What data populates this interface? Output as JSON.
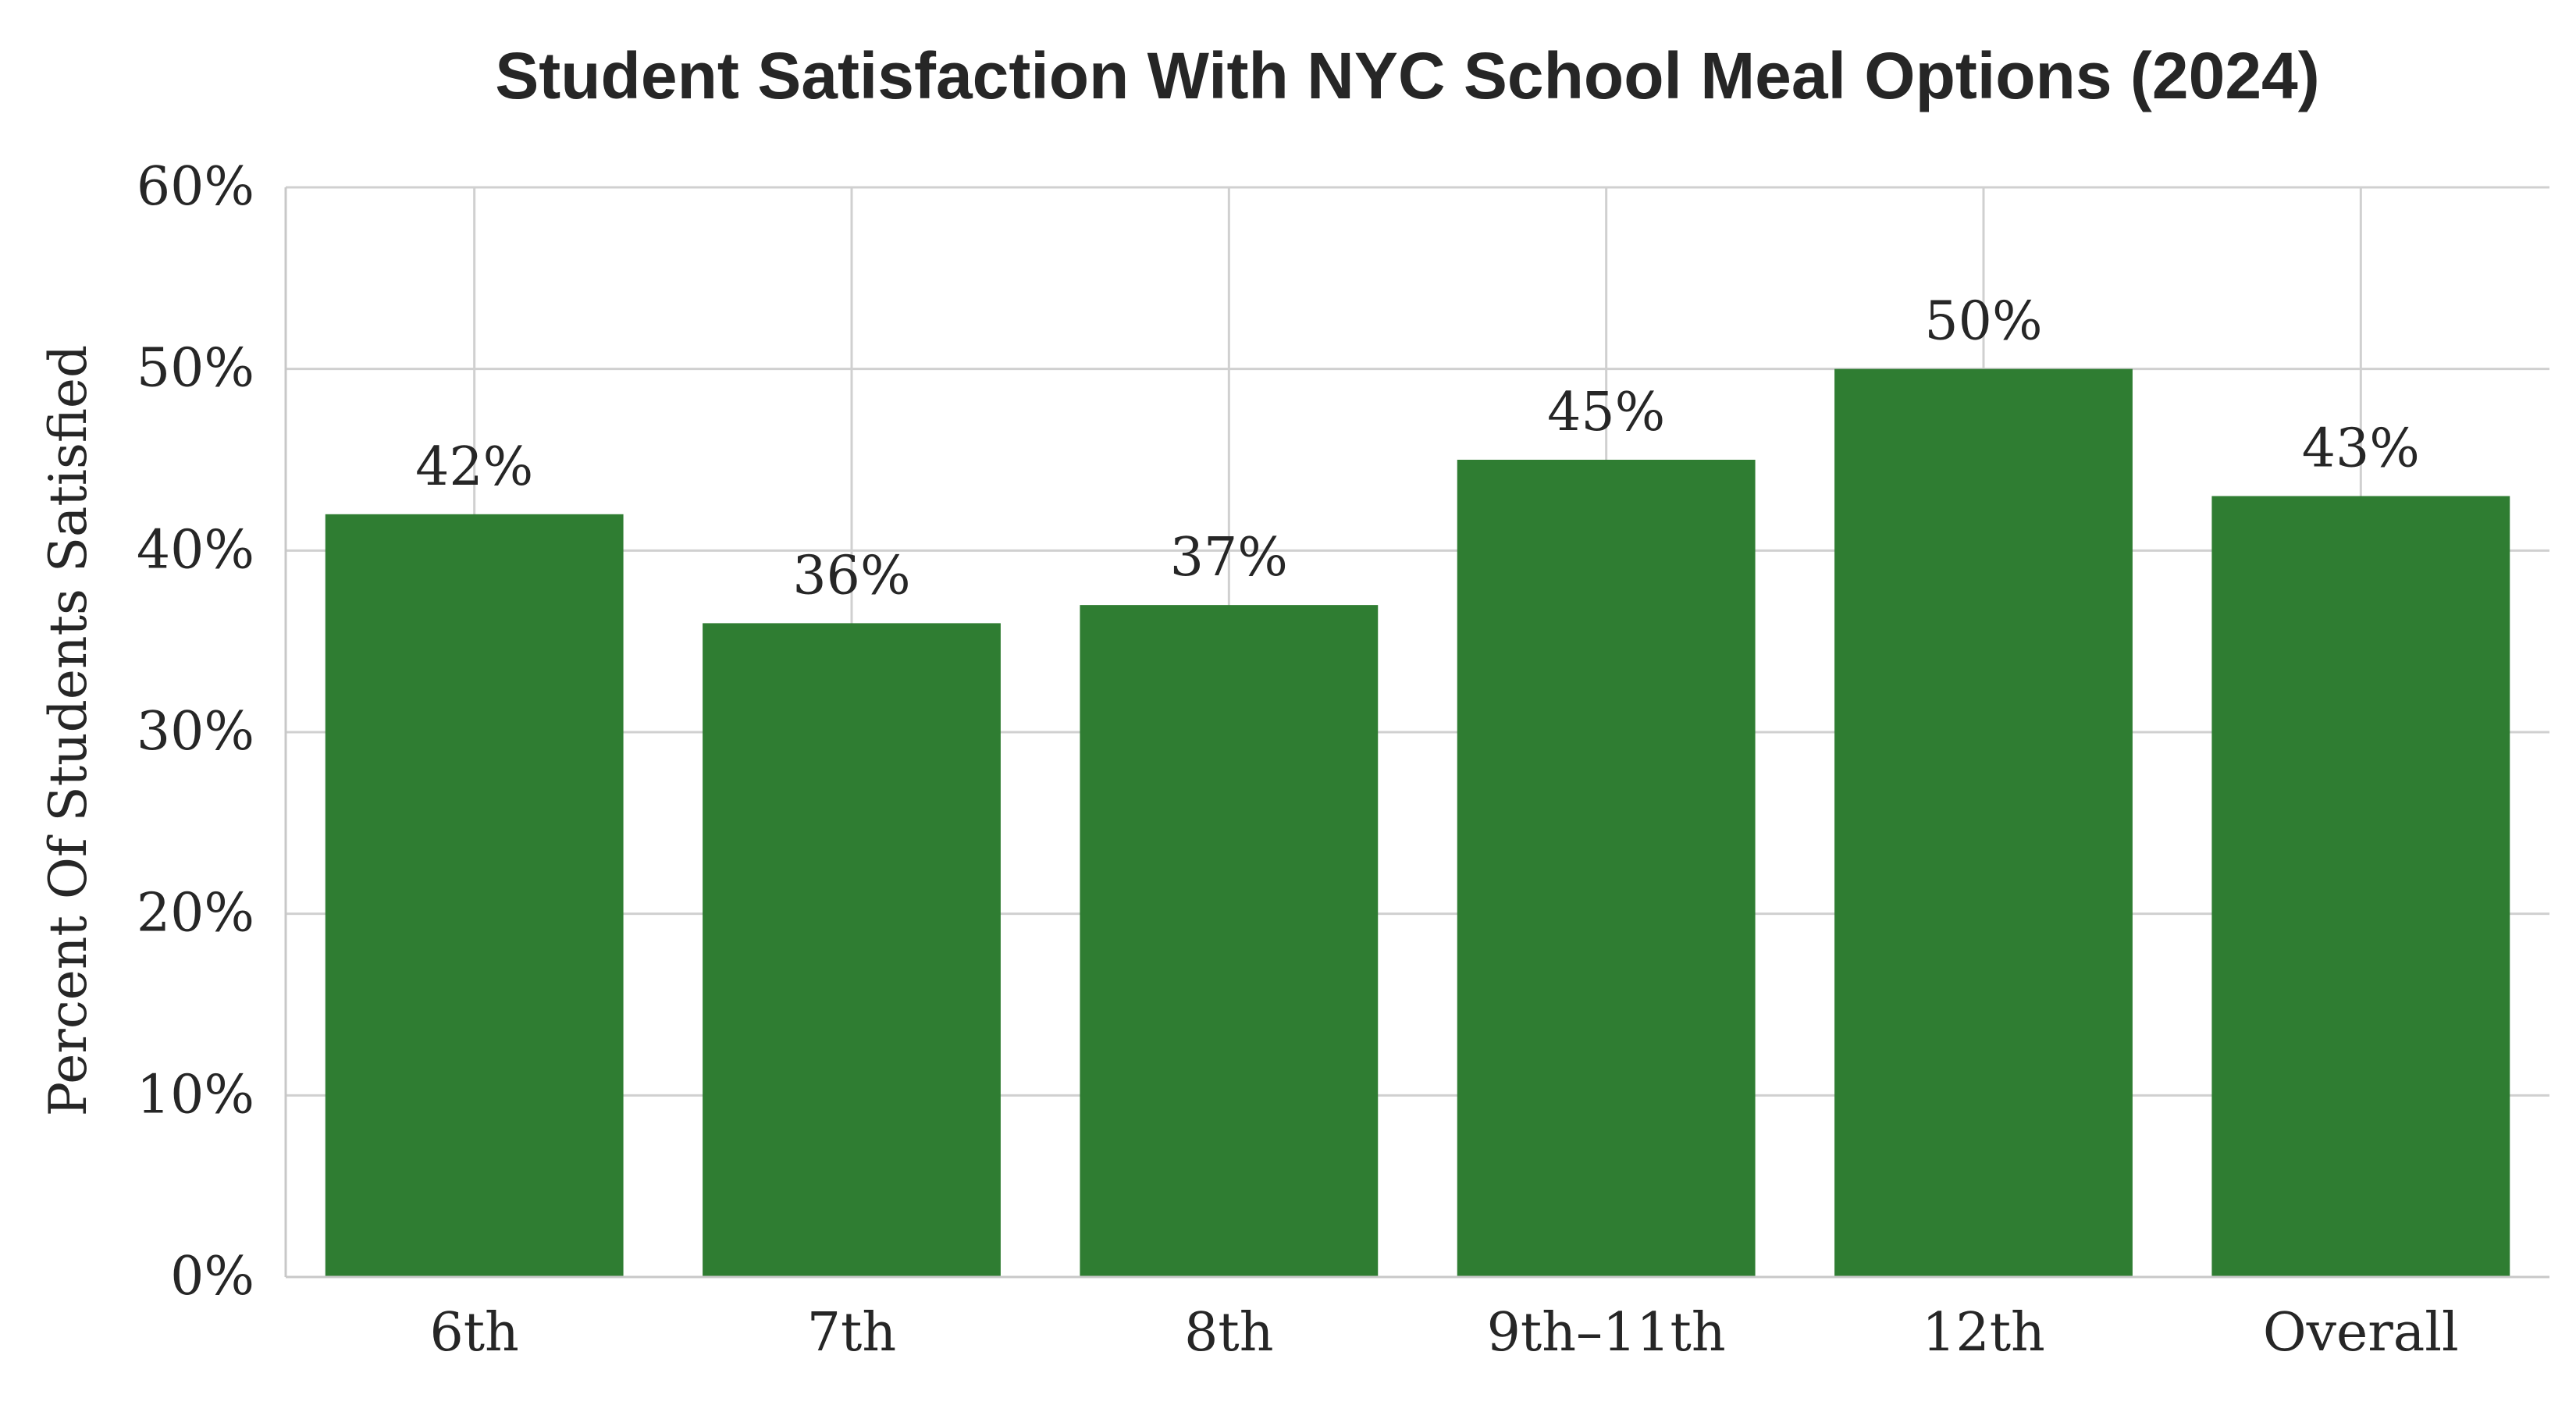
{
  "chart_data": {
    "type": "bar",
    "title": "Student Satisfaction With NYC School Meal Options (2024)",
    "xlabel": "",
    "ylabel": "Percent Of Students Satisfied",
    "categories": [
      "6th",
      "7th",
      "8th",
      "9th–11th",
      "12th",
      "Overall"
    ],
    "values": [
      42,
      36,
      37,
      45,
      50,
      43
    ],
    "data_labels": [
      "42%",
      "36%",
      "37%",
      "45%",
      "50%",
      "43%"
    ],
    "ylim": [
      0,
      60
    ],
    "yticks": [
      0,
      10,
      20,
      30,
      40,
      50,
      60
    ],
    "ytick_labels": [
      "0%",
      "10%",
      "20%",
      "30%",
      "40%",
      "50%",
      "60%"
    ],
    "grid": true,
    "colors": {
      "bar": "#2f7d32",
      "grid": "#d0d0d0",
      "axis": "#c8c8c8",
      "text": "#262626"
    }
  }
}
